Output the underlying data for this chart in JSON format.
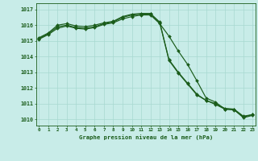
{
  "xlabel": "Graphe pression niveau de la mer (hPa)",
  "background_color": "#c8ece8",
  "grid_color": "#a8d8d0",
  "line_color": "#1a5c1a",
  "hours": [
    0,
    1,
    2,
    3,
    4,
    5,
    6,
    7,
    8,
    9,
    10,
    11,
    12,
    13,
    14,
    15,
    16,
    17,
    18,
    19,
    20,
    21,
    22,
    23
  ],
  "series1": [
    1015.1,
    1015.4,
    1015.8,
    1015.95,
    1015.8,
    1015.75,
    1015.85,
    1016.05,
    1016.15,
    1016.4,
    1016.55,
    1016.65,
    1016.65,
    1016.1,
    1015.3,
    1014.35,
    1013.5,
    1012.45,
    1011.35,
    1011.1,
    1010.65,
    1010.6,
    1010.15,
    1010.3
  ],
  "series2": [
    1015.15,
    1015.45,
    1015.9,
    1016.0,
    1015.85,
    1015.8,
    1015.9,
    1016.1,
    1016.2,
    1016.5,
    1016.65,
    1016.7,
    1016.72,
    1016.15,
    1013.75,
    1012.95,
    1012.25,
    1011.55,
    1011.2,
    1010.95,
    1010.65,
    1010.62,
    1010.1,
    1010.25
  ],
  "series3": [
    1015.2,
    1015.5,
    1016.0,
    1016.1,
    1015.95,
    1015.9,
    1016.0,
    1016.15,
    1016.25,
    1016.55,
    1016.7,
    1016.75,
    1016.75,
    1016.2,
    1013.8,
    1013.0,
    1012.3,
    1011.6,
    1011.2,
    1011.0,
    1010.7,
    1010.65,
    1010.2,
    1010.3
  ],
  "ylim_min": 1009.6,
  "ylim_max": 1017.4,
  "yticks": [
    1010,
    1011,
    1012,
    1013,
    1014,
    1015,
    1016,
    1017
  ],
  "markersize": 2.0,
  "linewidth": 0.85
}
